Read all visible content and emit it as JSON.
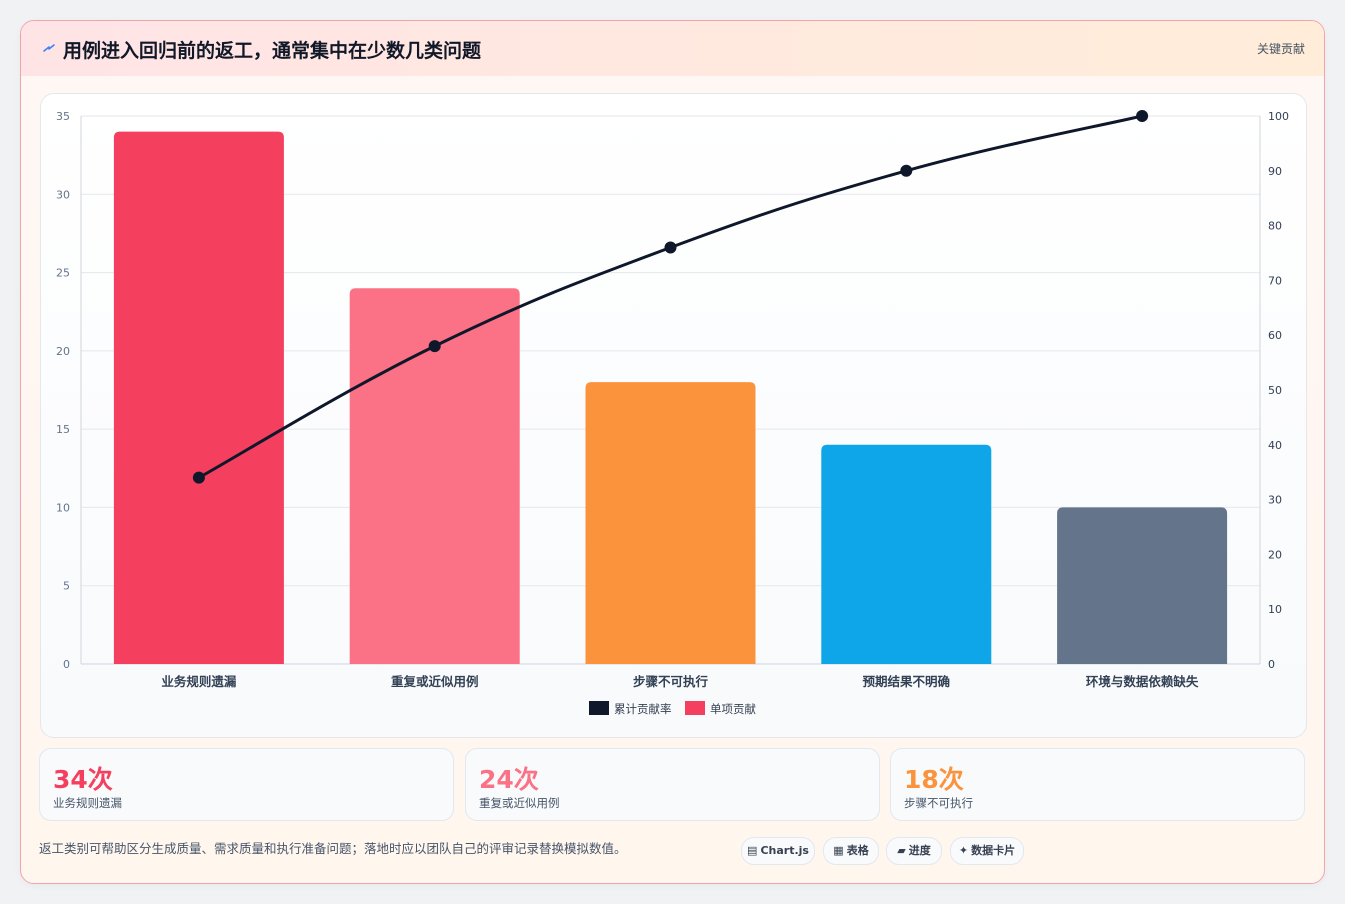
{
  "header": {
    "title": "用例进入回归前的返工，通常集中在少数几类问题",
    "badge": "关键贡献",
    "icon": "lightning-icon"
  },
  "colors": {
    "bars": [
      "#f43f5e",
      "#fb7185",
      "#fb923c",
      "#0ea5e9",
      "#64748b"
    ],
    "line": "#0f172a"
  },
  "chart_data": {
    "type": "bar",
    "categories": [
      "业务规则遗漏",
      "重复或近似用例",
      "步骤不可执行",
      "预期结果不明确",
      "环境与数据依赖缺失"
    ],
    "series": [
      {
        "name": "单项贡献",
        "type": "bar",
        "axis": "left",
        "values": [
          34,
          24,
          18,
          14,
          10
        ]
      },
      {
        "name": "累计贡献率",
        "type": "line",
        "axis": "right",
        "values": [
          34,
          58,
          76,
          90,
          100
        ]
      }
    ],
    "y_left": {
      "min": 0,
      "max": 35,
      "ticks": [
        "0",
        "5",
        "10",
        "15",
        "20",
        "25",
        "30",
        "35"
      ]
    },
    "y_right": {
      "min": 0,
      "max": 100,
      "ticks": [
        "0",
        "10",
        "20",
        "30",
        "40",
        "50",
        "60",
        "70",
        "80",
        "90",
        "100"
      ]
    },
    "legend": {
      "position": "bottom",
      "items": [
        "累计贡献率",
        "单项贡献"
      ]
    },
    "grid": true
  },
  "stats": [
    {
      "value": "34次",
      "label": "业务规则遗漏",
      "color": "#f43f5e"
    },
    {
      "value": "24次",
      "label": "重复或近似用例",
      "color": "#fb7185"
    },
    {
      "value": "18次",
      "label": "步骤不可执行",
      "color": "#fb923c"
    }
  ],
  "footer": {
    "note": "返工类别可帮助区分生成质量、需求质量和执行准备问题；落地时应以团队自己的评审记录替换模拟数值。",
    "pills": [
      {
        "icon": "chart-icon",
        "glyph": "▤",
        "label": "Chart.js"
      },
      {
        "icon": "table-icon",
        "glyph": "▦",
        "label": "表格"
      },
      {
        "icon": "progress-icon",
        "glyph": "▰",
        "label": "进度"
      },
      {
        "icon": "card-icon",
        "glyph": "✦",
        "label": "数据卡片"
      }
    ]
  }
}
